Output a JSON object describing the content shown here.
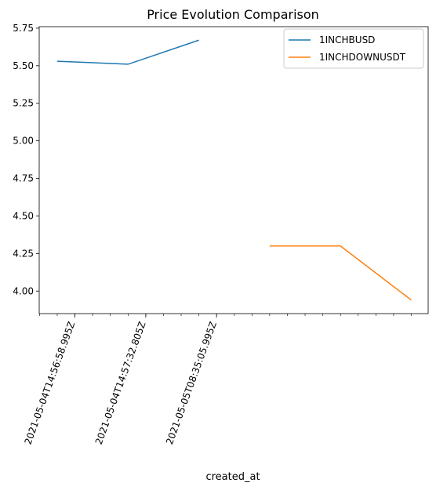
{
  "chart_data": {
    "type": "line",
    "title": "Price Evolution Comparison",
    "xlabel": "created_at",
    "ylabel": "",
    "ylim": [
      3.85,
      5.76
    ],
    "yticks": [
      4.0,
      4.25,
      4.5,
      4.75,
      5.0,
      5.25,
      5.5,
      5.75
    ],
    "ytick_labels": [
      "4.00",
      "4.25",
      "4.50",
      "4.75",
      "5.00",
      "5.25",
      "5.50",
      "5.75"
    ],
    "x_labeled_ticks": [
      "2021-05-04T14:56:58.995Z",
      "2021-05-04T14:57:32.805Z",
      "2021-05-05T08:35:05.995Z"
    ],
    "grid": false,
    "legend_position": "top-right",
    "series": [
      {
        "name": "1INCHBUSD",
        "color": "#1f77b4",
        "x": [
          "2021-05-04T14:56:58.995Z",
          "2021-05-04T14:57:32.805Z",
          "2021-05-05T08:35:05.995Z"
        ],
        "values": [
          5.53,
          5.51,
          5.67
        ]
      },
      {
        "name": "1INCHDOWNUSDT",
        "color": "#ff7f0e",
        "x": [
          "",
          "",
          ""
        ],
        "values": [
          4.3,
          4.3,
          3.94
        ]
      }
    ]
  }
}
